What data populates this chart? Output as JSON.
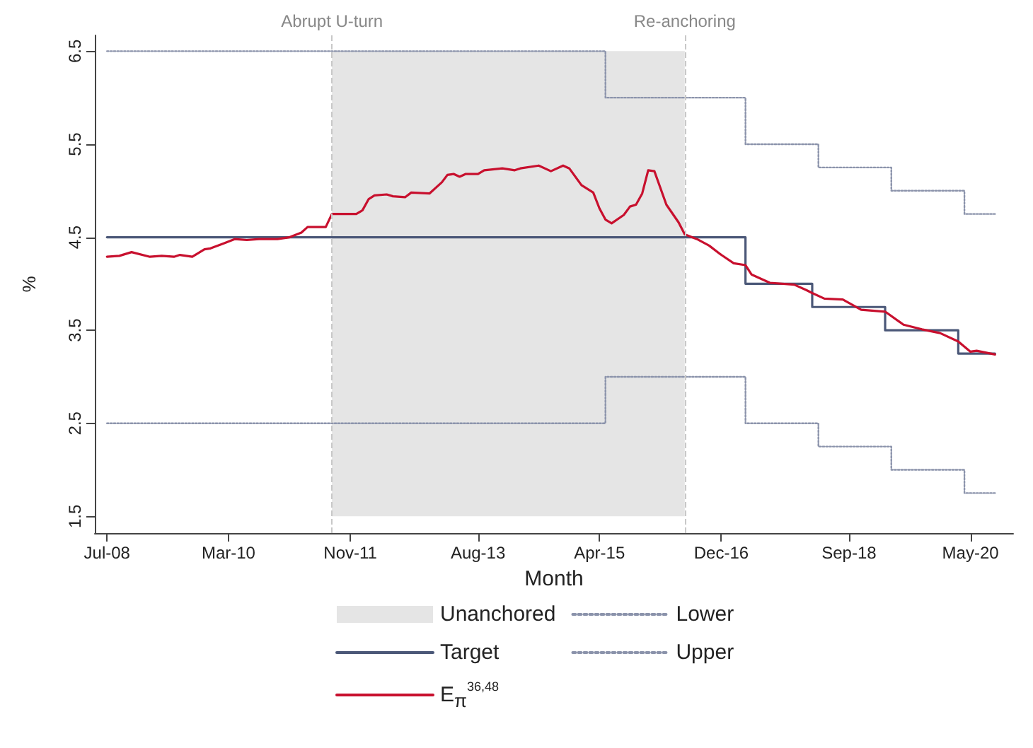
{
  "chart_data": {
    "type": "line",
    "xlabel": "Month",
    "ylabel": "%",
    "xlim": [
      "2008-05",
      "2020-12"
    ],
    "ylim": [
      1.32,
      6.67
    ],
    "xticks": [
      {
        "value": "2008-07",
        "label": "Jul-08"
      },
      {
        "value": "2010-03",
        "label": "Mar-10"
      },
      {
        "value": "2011-11",
        "label": "Nov-11"
      },
      {
        "value": "2013-08",
        "label": "Aug-13"
      },
      {
        "value": "2015-04",
        "label": "Apr-15"
      },
      {
        "value": "2016-12",
        "label": "Dec-16"
      },
      {
        "value": "2018-09",
        "label": "Sep-18"
      },
      {
        "value": "2020-05",
        "label": "May-20"
      }
    ],
    "yticks": [
      1.5,
      2.5,
      3.5,
      4.5,
      5.5,
      6.5
    ],
    "marker": "none",
    "legend": "bottom",
    "bands": [
      {
        "axis": "x",
        "from": "2011-08",
        "to": "2016-06",
        "label": "Unanchored",
        "color": "#e5e5e5"
      }
    ],
    "ref_lines": [
      {
        "axis": "x",
        "value": "2011-08",
        "label": "Abrupt U-turn",
        "color": "#c8c8c8",
        "line_style": "dashed"
      },
      {
        "axis": "x",
        "value": "2016-06",
        "label": "Re-anchoring",
        "color": "#c8c8c8",
        "line_style": "dashed"
      }
    ],
    "series": [
      {
        "name": "Target",
        "type": "step",
        "color": "#4b5878",
        "line_style": "solid",
        "x": [
          "2008-07",
          "2017-04",
          "2018-03",
          "2019-03",
          "2020-03",
          "2020-09"
        ],
        "values": [
          4.5,
          4.0,
          3.75,
          3.5,
          3.25,
          3.25
        ]
      },
      {
        "name": "E$_{π}$$^{36,48}$",
        "type": "line",
        "color": "#c8102e",
        "line_style": "solid",
        "x": [
          "2008-07",
          "2008-09",
          "2008-11",
          "2009-02",
          "2009-04",
          "2009-06",
          "2009-07",
          "2009-09",
          "2009-11",
          "2009-12",
          "2010-02",
          "2010-04",
          "2010-06",
          "2010-08",
          "2010-11",
          "2011-01",
          "2011-03",
          "2011-04",
          "2011-07",
          "2011-08",
          "2011-12",
          "2012-01",
          "2012-02",
          "2012-03",
          "2012-05",
          "2012-06",
          "2012-08",
          "2012-09",
          "2012-12",
          "2013-02",
          "2013-03",
          "2013-04",
          "2013-05",
          "2013-06",
          "2013-08",
          "2013-09",
          "2013-12",
          "2014-02",
          "2014-03",
          "2014-06",
          "2014-08",
          "2014-10",
          "2014-11",
          "2015-01",
          "2015-03",
          "2015-04",
          "2015-05",
          "2015-06",
          "2015-08",
          "2015-09",
          "2015-10",
          "2015-11",
          "2015-12",
          "2016-01",
          "2016-03",
          "2016-05",
          "2016-06",
          "2016-08",
          "2016-10",
          "2016-12",
          "2017-02",
          "2017-04",
          "2017-05",
          "2017-08",
          "2017-12",
          "2018-02",
          "2018-03",
          "2018-05",
          "2018-08",
          "2018-11",
          "2019-03",
          "2019-06",
          "2019-09",
          "2019-12",
          "2020-03",
          "2020-05",
          "2020-06",
          "2020-09"
        ],
        "values": [
          4.29,
          4.3,
          4.34,
          4.29,
          4.3,
          4.29,
          4.31,
          4.29,
          4.37,
          4.38,
          4.43,
          4.48,
          4.47,
          4.48,
          4.48,
          4.5,
          4.55,
          4.61,
          4.61,
          4.75,
          4.75,
          4.79,
          4.91,
          4.95,
          4.96,
          4.94,
          4.93,
          4.98,
          4.97,
          5.09,
          5.17,
          5.18,
          5.15,
          5.18,
          5.18,
          5.22,
          5.24,
          5.22,
          5.24,
          5.27,
          5.21,
          5.27,
          5.24,
          5.06,
          4.98,
          4.81,
          4.69,
          4.65,
          4.74,
          4.83,
          4.85,
          4.97,
          5.22,
          5.21,
          4.85,
          4.66,
          4.53,
          4.48,
          4.41,
          4.31,
          4.22,
          4.2,
          4.1,
          4.01,
          3.99,
          3.93,
          3.9,
          3.84,
          3.83,
          3.72,
          3.7,
          3.56,
          3.51,
          3.47,
          3.38,
          3.27,
          3.28,
          3.24
        ]
      },
      {
        "name": "Lower",
        "type": "step",
        "color": "#8b93ab",
        "line_style": "dotted",
        "x": [
          "2008-07",
          "2015-05",
          "2017-04",
          "2018-04",
          "2019-04",
          "2020-04",
          "2020-09"
        ],
        "values": [
          2.5,
          3.0,
          2.5,
          2.25,
          2.0,
          1.75,
          1.75
        ]
      },
      {
        "name": "Upper",
        "type": "step",
        "color": "#8b93ab",
        "line_style": "dotted",
        "x": [
          "2008-07",
          "2015-05",
          "2017-04",
          "2018-04",
          "2019-04",
          "2020-04",
          "2020-09"
        ],
        "values": [
          6.5,
          6.0,
          5.5,
          5.25,
          5.0,
          4.75,
          4.75
        ]
      }
    ]
  }
}
